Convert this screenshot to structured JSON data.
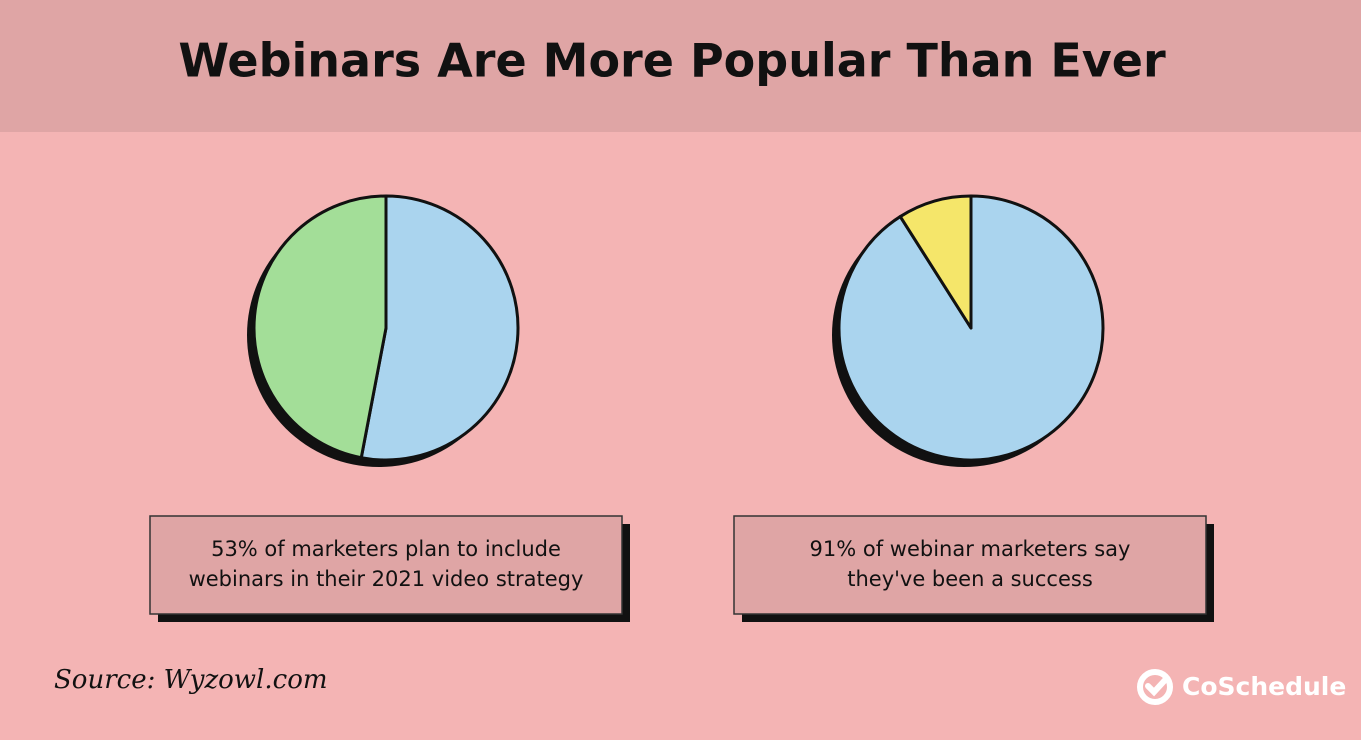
{
  "title": "Webinars Are More Popular Than Ever",
  "chart_data": [
    {
      "type": "pie",
      "values": [
        53,
        47
      ],
      "colors": [
        "#aad4ee",
        "#a3de98"
      ],
      "caption": [
        "53% of marketers plan to include",
        "webinars in their 2021 video strategy"
      ]
    },
    {
      "type": "pie",
      "values": [
        91,
        9
      ],
      "colors": [
        "#aad4ee",
        "#f5e66a"
      ],
      "caption": [
        "91% of webinar marketers say",
        "they've been a success"
      ]
    }
  ],
  "source": "Source: Wyzowl.com",
  "brand": "CoSchedule"
}
